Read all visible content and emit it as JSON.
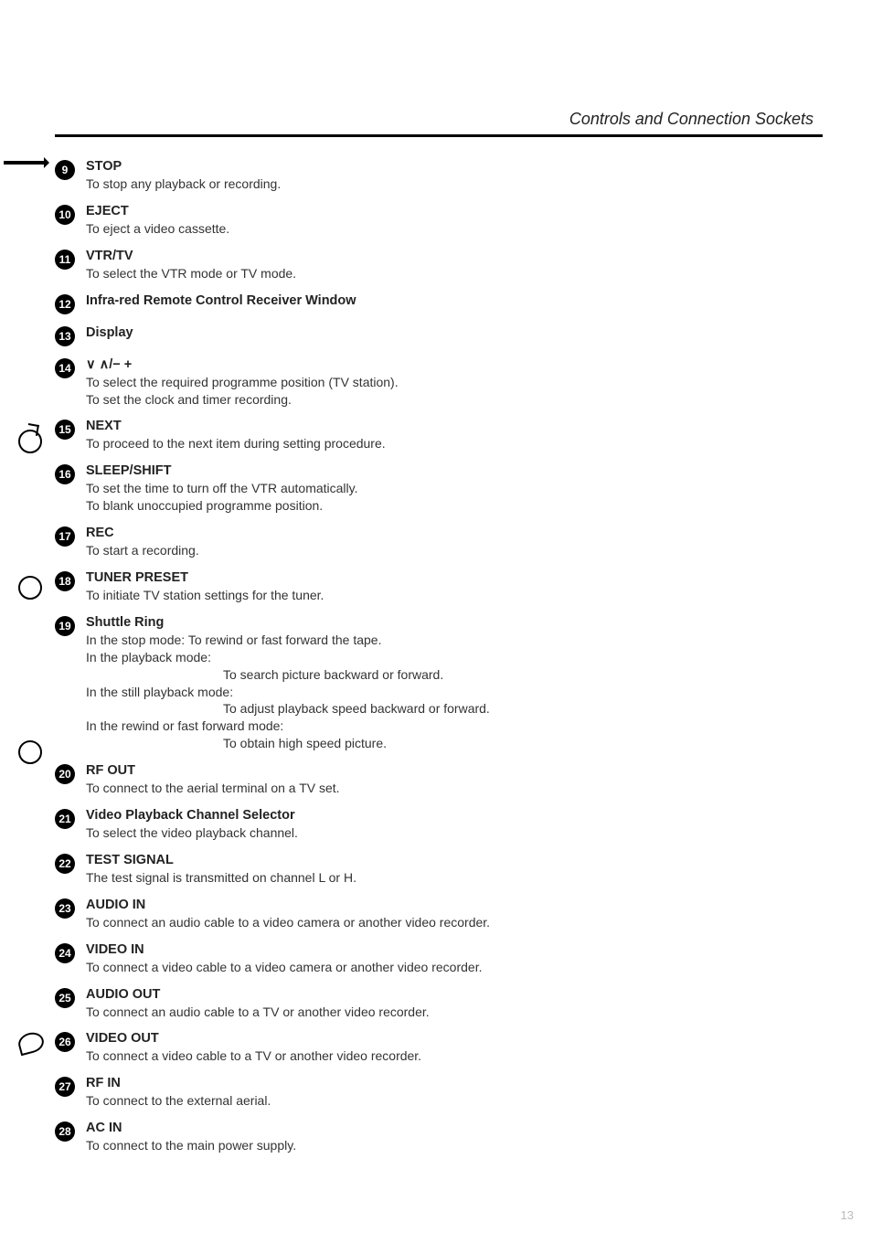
{
  "header": {
    "title": "Controls and Connection Sockets"
  },
  "page_number": "13",
  "items": [
    {
      "num": "9",
      "title": "STOP",
      "lines": [
        "To stop any playback or recording."
      ]
    },
    {
      "num": "10",
      "title": "EJECT",
      "lines": [
        "To eject a video cassette."
      ]
    },
    {
      "num": "11",
      "title": "VTR/TV",
      "lines": [
        "To select the VTR mode or TV mode."
      ]
    },
    {
      "num": "12",
      "title": "Infra-red Remote Control Receiver Window",
      "lines": []
    },
    {
      "num": "13",
      "title": "Display",
      "lines": []
    },
    {
      "num": "14",
      "title": "∨ ∧/− +",
      "lines": [
        "To select the required programme position (TV station).",
        "To set the clock and timer recording."
      ]
    },
    {
      "num": "15",
      "title": "NEXT",
      "lines": [
        "To proceed to the next item during setting procedure."
      ]
    },
    {
      "num": "16",
      "title": "SLEEP/SHIFT",
      "lines": [
        "To set the time to turn off the VTR automatically.",
        "To blank unoccupied programme position."
      ]
    },
    {
      "num": "17",
      "title": "REC",
      "lines": [
        "To start a recording."
      ]
    },
    {
      "num": "18",
      "title": "TUNER PRESET",
      "lines": [
        "To initiate TV station settings for the tuner."
      ]
    },
    {
      "num": "19",
      "title": "Shuttle Ring",
      "lines": [
        "In the stop mode:  To rewind or fast forward the tape.",
        "In the playback mode:"
      ],
      "indent": [
        "To search picture backward or forward."
      ],
      "lines2": [
        "In the still playback mode:"
      ],
      "indent2": [
        "To adjust playback speed backward or forward."
      ],
      "lines3": [
        "In the rewind or fast forward mode:"
      ],
      "indent3": [
        "To obtain high speed picture."
      ]
    },
    {
      "num": "20",
      "title": "RF OUT",
      "lines": [
        "To connect to the aerial terminal on a TV set."
      ]
    },
    {
      "num": "21",
      "title": "Video Playback Channel Selector",
      "lines": [
        "To select the video playback channel."
      ]
    },
    {
      "num": "22",
      "title": "TEST SIGNAL",
      "lines": [
        "The test signal is transmitted on channel L or H."
      ]
    },
    {
      "num": "23",
      "title": "AUDIO IN",
      "lines": [
        "To connect an audio cable to a video camera or another video recorder."
      ]
    },
    {
      "num": "24",
      "title": "VIDEO IN",
      "lines": [
        "To connect a video cable to a video camera or another video recorder."
      ]
    },
    {
      "num": "25",
      "title": "AUDIO OUT",
      "lines": [
        "To connect an audio cable to a TV or another video recorder."
      ]
    },
    {
      "num": "26",
      "title": "VIDEO OUT",
      "lines": [
        "To connect a video cable to a TV or another video recorder."
      ]
    },
    {
      "num": "27",
      "title": "RF IN",
      "lines": [
        "To connect to the external aerial."
      ]
    },
    {
      "num": "28",
      "title": "AC IN",
      "lines": [
        "To connect to the main power supply."
      ]
    }
  ]
}
